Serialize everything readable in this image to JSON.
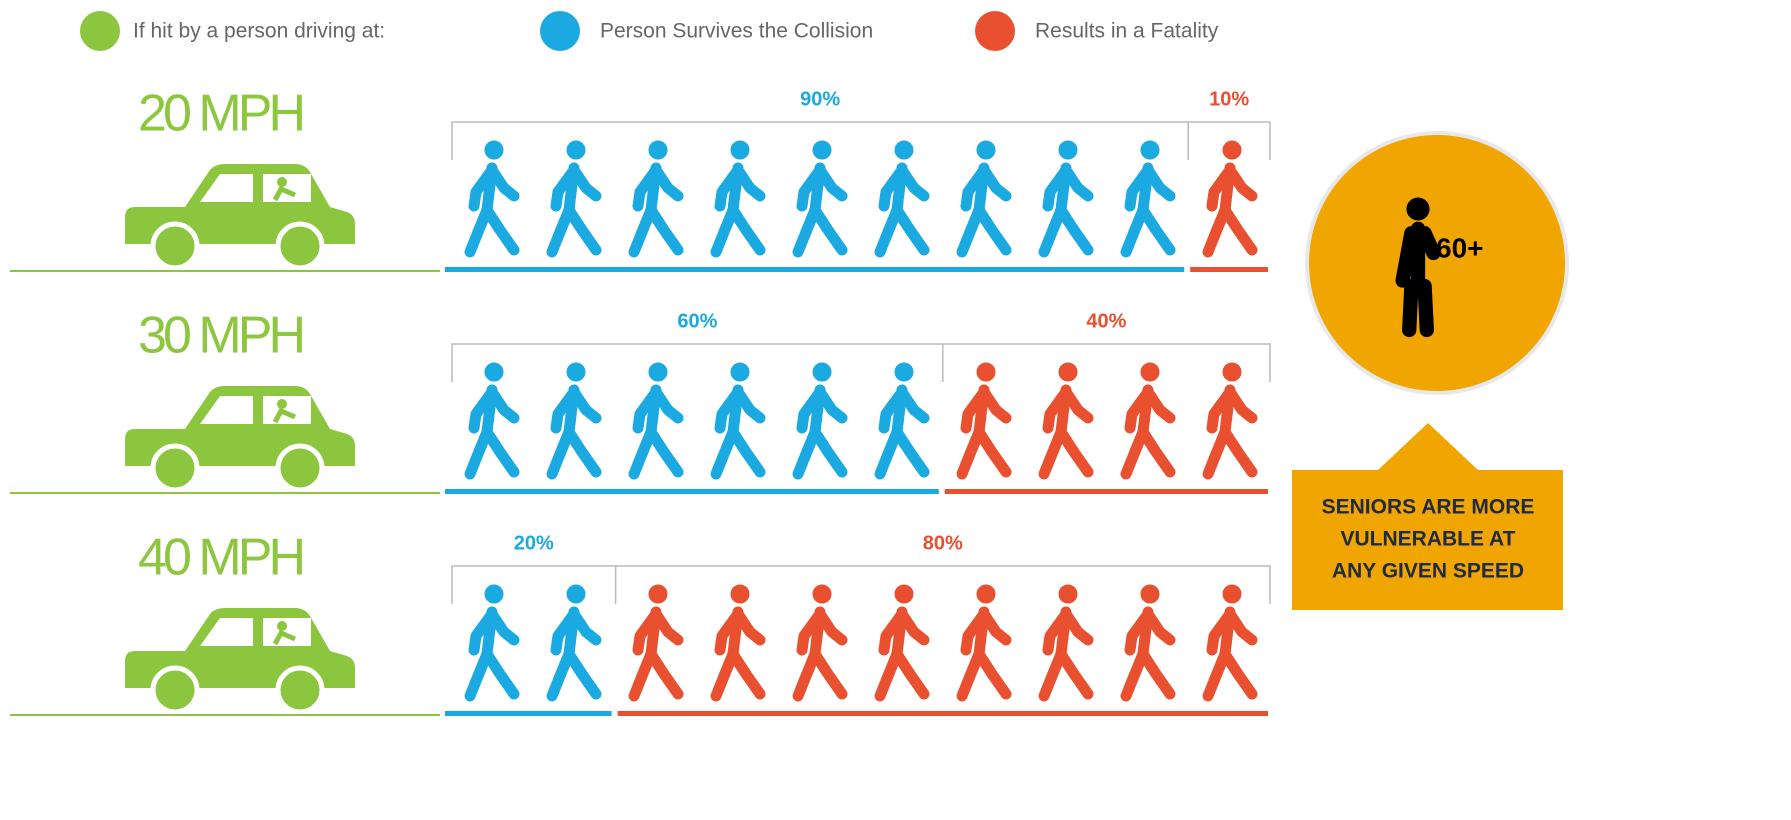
{
  "legend": {
    "driving": "If hit by a person driving at:",
    "survives": "Person Survives the Collision",
    "fatality": "Results in a Fatality"
  },
  "rows": [
    {
      "speed": "20 MPH",
      "survives": 90,
      "survives_label": "90%",
      "fatality": 10,
      "fatality_label": "10%"
    },
    {
      "speed": "30 MPH",
      "survives": 60,
      "survives_label": "60%",
      "fatality": 40,
      "fatality_label": "40%"
    },
    {
      "speed": "40 MPH",
      "survives": 20,
      "survives_label": "20%",
      "fatality": 80,
      "fatality_label": "80%"
    }
  ],
  "callout": {
    "badge": "60+",
    "lines": [
      "SENIORS ARE MORE",
      "VULNERABLE AT",
      "ANY GIVEN SPEED"
    ]
  }
}
